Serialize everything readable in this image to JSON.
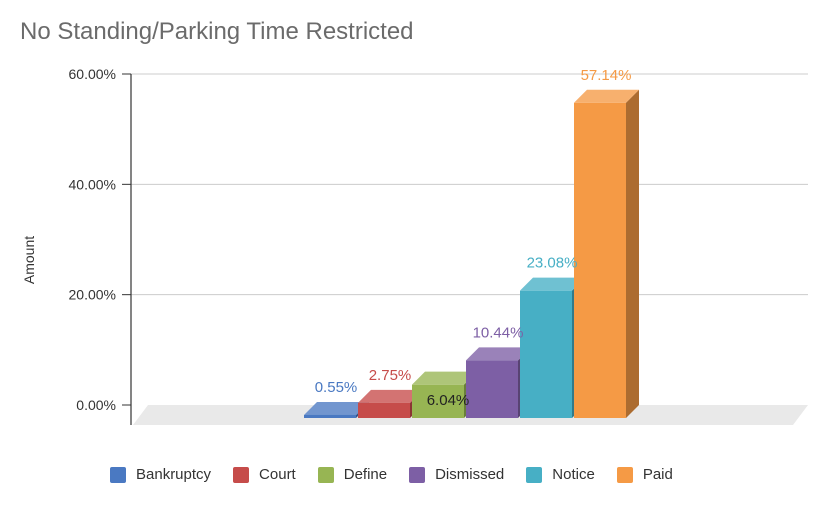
{
  "chart_data": {
    "type": "bar",
    "title": "No Standing/Parking Time Restricted",
    "xlabel": "",
    "ylabel": "Amount",
    "ylim": [
      0,
      60
    ],
    "yticks": [
      0,
      20,
      40,
      60
    ],
    "ytick_labels": [
      "0.00%",
      "20.00%",
      "40.00%",
      "60.00%"
    ],
    "grid": true,
    "legend_position": "bottom",
    "categories": [
      "Bankruptcy",
      "Court",
      "Define",
      "Dismissed",
      "Notice",
      "Paid"
    ],
    "values": [
      0.55,
      2.75,
      6.04,
      10.44,
      23.08,
      57.14
    ],
    "data_labels": [
      "0.55%",
      "2.75%",
      "6.04%",
      "10.44%",
      "23.08%",
      "57.14%"
    ],
    "colors": [
      "#4a79c2",
      "#c64c4a",
      "#97b553",
      "#7d5fa5",
      "#47afc5",
      "#f59a45"
    ]
  }
}
